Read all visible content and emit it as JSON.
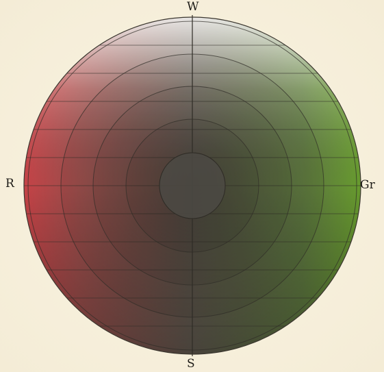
{
  "labels": {
    "top": "W",
    "left": "R",
    "right": "Gr",
    "bottom": "S"
  },
  "colors": {
    "paper": "#f6efd9",
    "red_pole": "#d2454a",
    "green_pole": "#6da52f",
    "white_pole": "#f1ead2",
    "black_pole": "#3d3b34",
    "core": "#4c4a44",
    "line": "#2f2c26"
  },
  "rings": 5,
  "latitude_lines": 11
}
